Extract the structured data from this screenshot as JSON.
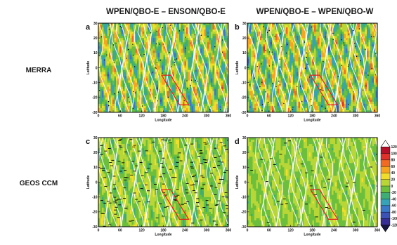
{
  "chart_data": {
    "type": "heatmap",
    "column_titles": [
      "WPEN/QBO-E – ENSON/QBO-E",
      "WPEN/QBO-E – WPEN/QBO-W"
    ],
    "row_labels": [
      "MERRA",
      "GEOS CCM"
    ],
    "xlabel": "Longitude",
    "ylabel": "Latitude",
    "xlim": [
      0,
      360
    ],
    "ylim": [
      -30,
      30
    ],
    "xticks": [
      "0",
      "60",
      "120",
      "180",
      "240",
      "300",
      "360"
    ],
    "yticks": [
      "30",
      "20",
      "10",
      "0",
      "-10",
      "-20",
      "-30"
    ],
    "colorbar": {
      "labels": [
        "120",
        "100",
        "80",
        "60",
        "40",
        "20",
        "0",
        "-20",
        "-40",
        "-60",
        "-80",
        "-100",
        "-120"
      ],
      "colors": [
        "#fdfdfd",
        "#b5102a",
        "#e0302a",
        "#f26b22",
        "#f7a51f",
        "#f0de2a",
        "#b9d637",
        "#6cbf3c",
        "#3fae74",
        "#36a3b6",
        "#3a78c8",
        "#3d52b5",
        "#362e94",
        "#161640"
      ]
    },
    "region_box": {
      "lon": [
        175,
        250
      ],
      "lat": [
        -25,
        -5
      ]
    },
    "panels": [
      {
        "letter": "a",
        "row": 0,
        "col": 0,
        "amplitude": 1.0,
        "stipple": 0.18
      },
      {
        "letter": "b",
        "row": 0,
        "col": 1,
        "amplitude": 1.05,
        "stipple": 0.2
      },
      {
        "letter": "c",
        "row": 1,
        "col": 0,
        "amplitude": 0.45,
        "stipple": 0.45
      },
      {
        "letter": "d",
        "row": 1,
        "col": 1,
        "amplitude": 0.3,
        "stipple": 0.08
      }
    ]
  }
}
